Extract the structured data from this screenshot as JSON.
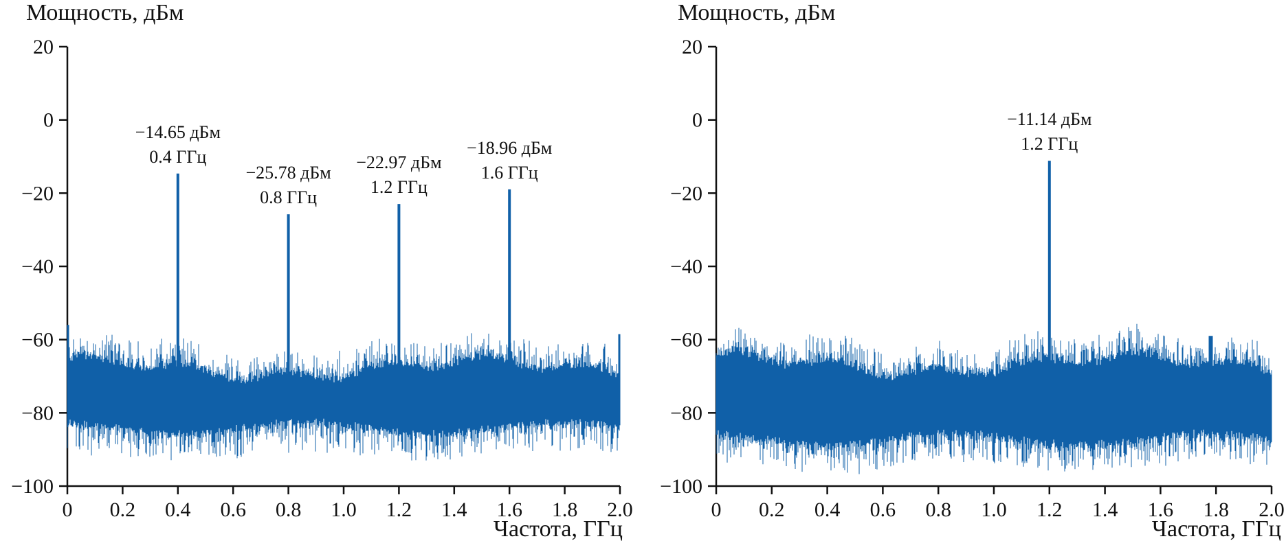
{
  "figure": {
    "background": "#ffffff",
    "axis_color": "#111111"
  },
  "charts": [
    {
      "type": "line",
      "ylabel": "Мощность, дБм",
      "xlabel": "Частота, ГГц",
      "xlim": [
        0,
        2.0
      ],
      "ylim": [
        -100,
        20
      ],
      "xtick_values": [
        0,
        0.2,
        0.4,
        0.6,
        0.8,
        1.0,
        1.2,
        1.4,
        1.6,
        1.8,
        2.0
      ],
      "xtick_labels": [
        "0",
        "0.2",
        "0.4",
        "0.6",
        "0.8",
        "1.0",
        "1.2",
        "1.4",
        "1.6",
        "1.8",
        "2.0"
      ],
      "ytick_values": [
        20,
        0,
        -20,
        -40,
        -60,
        -80,
        -100
      ],
      "ytick_labels": [
        "20",
        "0",
        "−20",
        "−40",
        "−60",
        "−80",
        "−100"
      ],
      "line_color": "#1060a8",
      "noise_floor": {
        "top_dbm": -67,
        "bottom_dbm": -85,
        "seed": 7
      },
      "noise_bumps": [
        {
          "freq_ghz": 0.0,
          "power_dbm": -56
        },
        {
          "freq_ghz": 2.0,
          "power_dbm": -58.5
        }
      ],
      "peaks": [
        {
          "freq_ghz": 0.4,
          "power_dbm": -14.65,
          "label_line1": "−14.65 дБм",
          "label_line2": "0.4 ГГц"
        },
        {
          "freq_ghz": 0.8,
          "power_dbm": -25.78,
          "label_line1": "−25.78 дБм",
          "label_line2": "0.8 ГГц"
        },
        {
          "freq_ghz": 1.2,
          "power_dbm": -22.97,
          "label_line1": "−22.97 дБм",
          "label_line2": "1.2 ГГц"
        },
        {
          "freq_ghz": 1.6,
          "power_dbm": -18.96,
          "label_line1": "−18.96 дБм",
          "label_line2": "1.6 ГГц"
        }
      ]
    },
    {
      "type": "line",
      "ylabel": "Мощность, дБм",
      "xlabel": "Частота, ГГц",
      "xlim": [
        0,
        2.0
      ],
      "ylim": [
        -100,
        20
      ],
      "xtick_values": [
        0,
        0.2,
        0.4,
        0.6,
        0.8,
        1.0,
        1.2,
        1.4,
        1.6,
        1.8,
        2.0
      ],
      "xtick_labels": [
        "0",
        "0.2",
        "0.4",
        "0.6",
        "0.8",
        "1.0",
        "1.2",
        "1.4",
        "1.6",
        "1.8",
        "2.0"
      ],
      "ytick_values": [
        20,
        0,
        -20,
        -40,
        -60,
        -80,
        -100
      ],
      "ytick_labels": [
        "20",
        "0",
        "−20",
        "−40",
        "−60",
        "−80",
        "−100"
      ],
      "line_color": "#1060a8",
      "noise_floor": {
        "top_dbm": -66,
        "bottom_dbm": -88,
        "seed": 21
      },
      "noise_bumps": [
        {
          "freq_ghz": 1.78,
          "power_dbm": -59
        }
      ],
      "peaks": [
        {
          "freq_ghz": 1.2,
          "power_dbm": -11.14,
          "label_line1": "−11.14 дБм",
          "label_line2": "1.2 ГГц"
        }
      ]
    }
  ]
}
